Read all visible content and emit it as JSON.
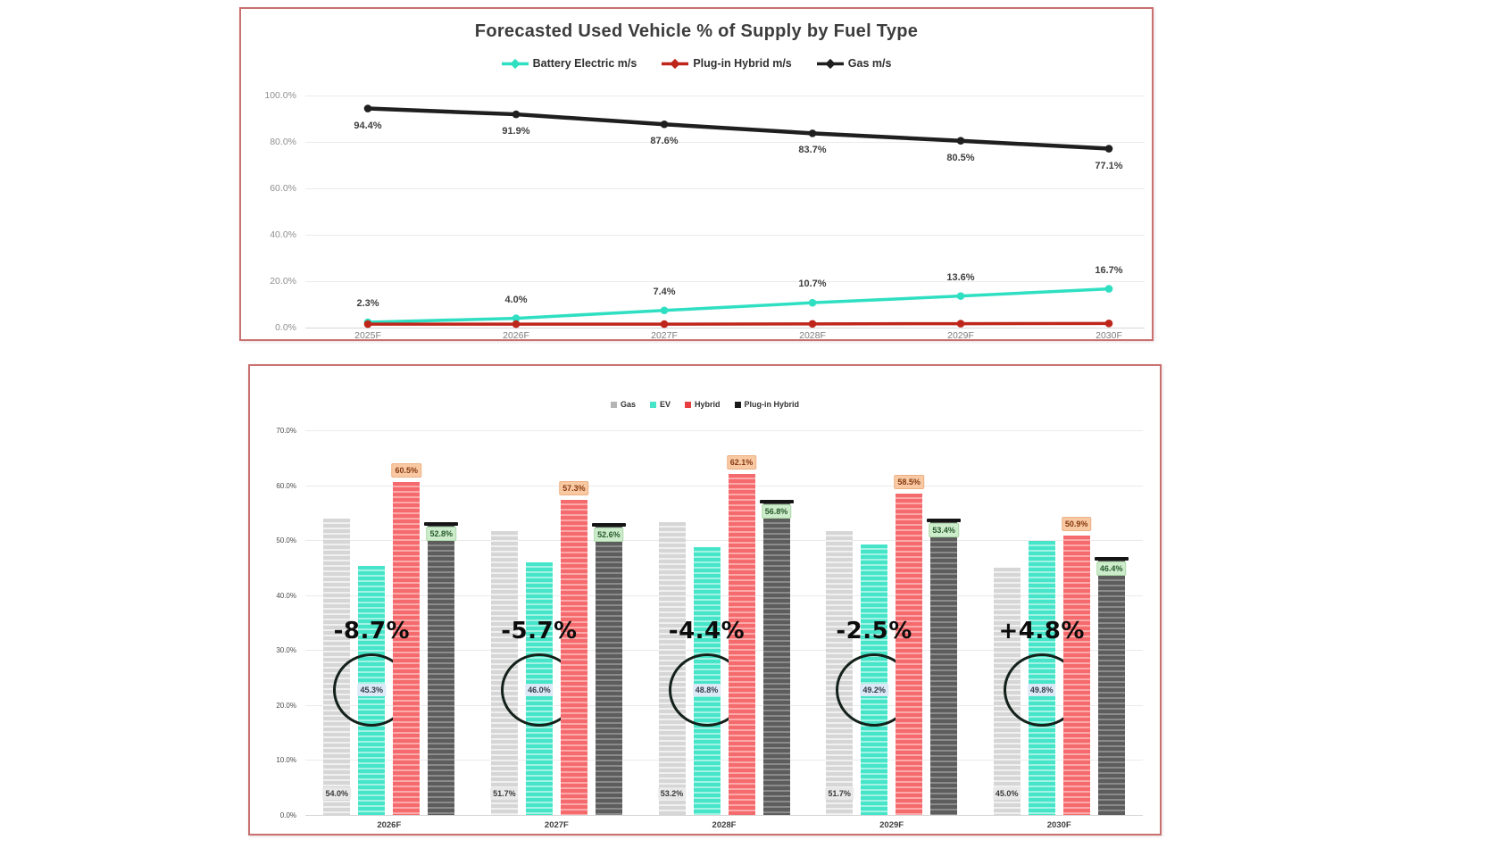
{
  "colors": {
    "panel_border": "#c97070",
    "battery_electric": "#2fdfc2",
    "plug_in_hybrid_line": "#bf261b",
    "gas_line": "#1f1f1f",
    "annotation_text": "#0c0c0c",
    "orange_label_bg": "#f8c9a2",
    "green_label_bg": "#cdeccb",
    "blue_label_bg": "#dce9f6"
  },
  "chart_data": [
    {
      "type": "line",
      "title": "Forecasted Used Vehicle % of Supply by Fuel Type",
      "x": [
        "2025F",
        "2026F",
        "2027F",
        "2028F",
        "2029F",
        "2030F"
      ],
      "ylim": [
        0,
        100
      ],
      "grid": true,
      "legend_position": "top-center",
      "yticks": [
        {
          "v": 0,
          "label": "0.0%"
        },
        {
          "v": 20,
          "label": "20.0%"
        },
        {
          "v": 40,
          "label": "40.0%"
        },
        {
          "v": 60,
          "label": "60.0%"
        },
        {
          "v": 80,
          "label": "80.0%"
        },
        {
          "v": 100,
          "label": "100.0%"
        }
      ],
      "series": [
        {
          "name": "Battery Electric m/s",
          "color": "#2fdfc2",
          "values": [
            2.3,
            4.0,
            7.4,
            10.7,
            13.6,
            16.7
          ],
          "labels": [
            "2.3%",
            "4.0%",
            "7.4%",
            "10.7%",
            "13.6%",
            "16.7%"
          ],
          "label_position": "above"
        },
        {
          "name": "Plug-in Hybrid m/s",
          "color": "#bf261b",
          "values": [
            1.5,
            1.5,
            1.5,
            1.6,
            1.7,
            1.8
          ],
          "labels": null,
          "label_position": "none"
        },
        {
          "name": "Gas m/s",
          "color": "#1f1f1f",
          "values": [
            94.4,
            91.9,
            87.6,
            83.7,
            80.5,
            77.1
          ],
          "labels": [
            "94.4%",
            "91.9%",
            "87.6%",
            "83.7%",
            "80.5%",
            "77.1%"
          ],
          "label_position": "below"
        }
      ]
    },
    {
      "type": "bar",
      "title": "",
      "categories": [
        "2026F",
        "2027F",
        "2028F",
        "2029F",
        "2030F"
      ],
      "ylim": [
        0,
        70
      ],
      "grid": true,
      "legend_position": "top-center",
      "yticks": [
        {
          "v": 0,
          "label": "0.0%"
        },
        {
          "v": 10,
          "label": "10.0%"
        },
        {
          "v": 20,
          "label": "20.0%"
        },
        {
          "v": 30,
          "label": "30.0%"
        },
        {
          "v": 40,
          "label": "40.0%"
        },
        {
          "v": 50,
          "label": "50.0%"
        },
        {
          "v": 60,
          "label": "60.0%"
        },
        {
          "v": 70,
          "label": "70.0%"
        }
      ],
      "series": [
        {
          "name": "Gas",
          "fill": "#d6d6d6",
          "stripe": "#f0f0f0",
          "legend_color": "#b5b5b5",
          "values": [
            54.0,
            51.7,
            53.2,
            51.7,
            45.0
          ],
          "labels": [
            "54.0%",
            "51.7%",
            "53.2%",
            "51.7%",
            "45.0%"
          ],
          "label_style": "bottom-pill"
        },
        {
          "name": "EV",
          "fill": "#46e5ca",
          "stripe": "#a2f3e3",
          "legend_color": "#46e5ca",
          "values": [
            45.3,
            46.0,
            48.8,
            49.2,
            49.8
          ],
          "labels": [
            "45.3%",
            "46.0%",
            "48.8%",
            "49.2%",
            "49.8%"
          ],
          "label_style": "circled"
        },
        {
          "name": "Hybrid",
          "fill": "#f56b6d",
          "stripe": "#fba9aa",
          "legend_color": "#e63e41",
          "values": [
            60.5,
            57.3,
            62.1,
            58.5,
            50.9
          ],
          "labels": [
            "60.5%",
            "57.3%",
            "62.1%",
            "58.5%",
            "50.9%"
          ],
          "label_style": "top-orange"
        },
        {
          "name": "Plug-in Hybrid",
          "fill": "#5d5d5d",
          "stripe": "#8b8b8b",
          "legend_color": "#1a1a1a",
          "values": [
            52.8,
            52.6,
            56.8,
            53.4,
            46.4
          ],
          "labels": [
            "52.8%",
            "52.6%",
            "56.8%",
            "53.4%",
            "46.4%"
          ],
          "label_style": "top-green"
        }
      ],
      "annotations": [
        {
          "category": "2026F",
          "text": "-8.7%"
        },
        {
          "category": "2027F",
          "text": "-5.7%"
        },
        {
          "category": "2028F",
          "text": "-4.4%"
        },
        {
          "category": "2029F",
          "text": "-2.5%"
        },
        {
          "category": "2030F",
          "text": "+4.8%"
        }
      ]
    }
  ]
}
